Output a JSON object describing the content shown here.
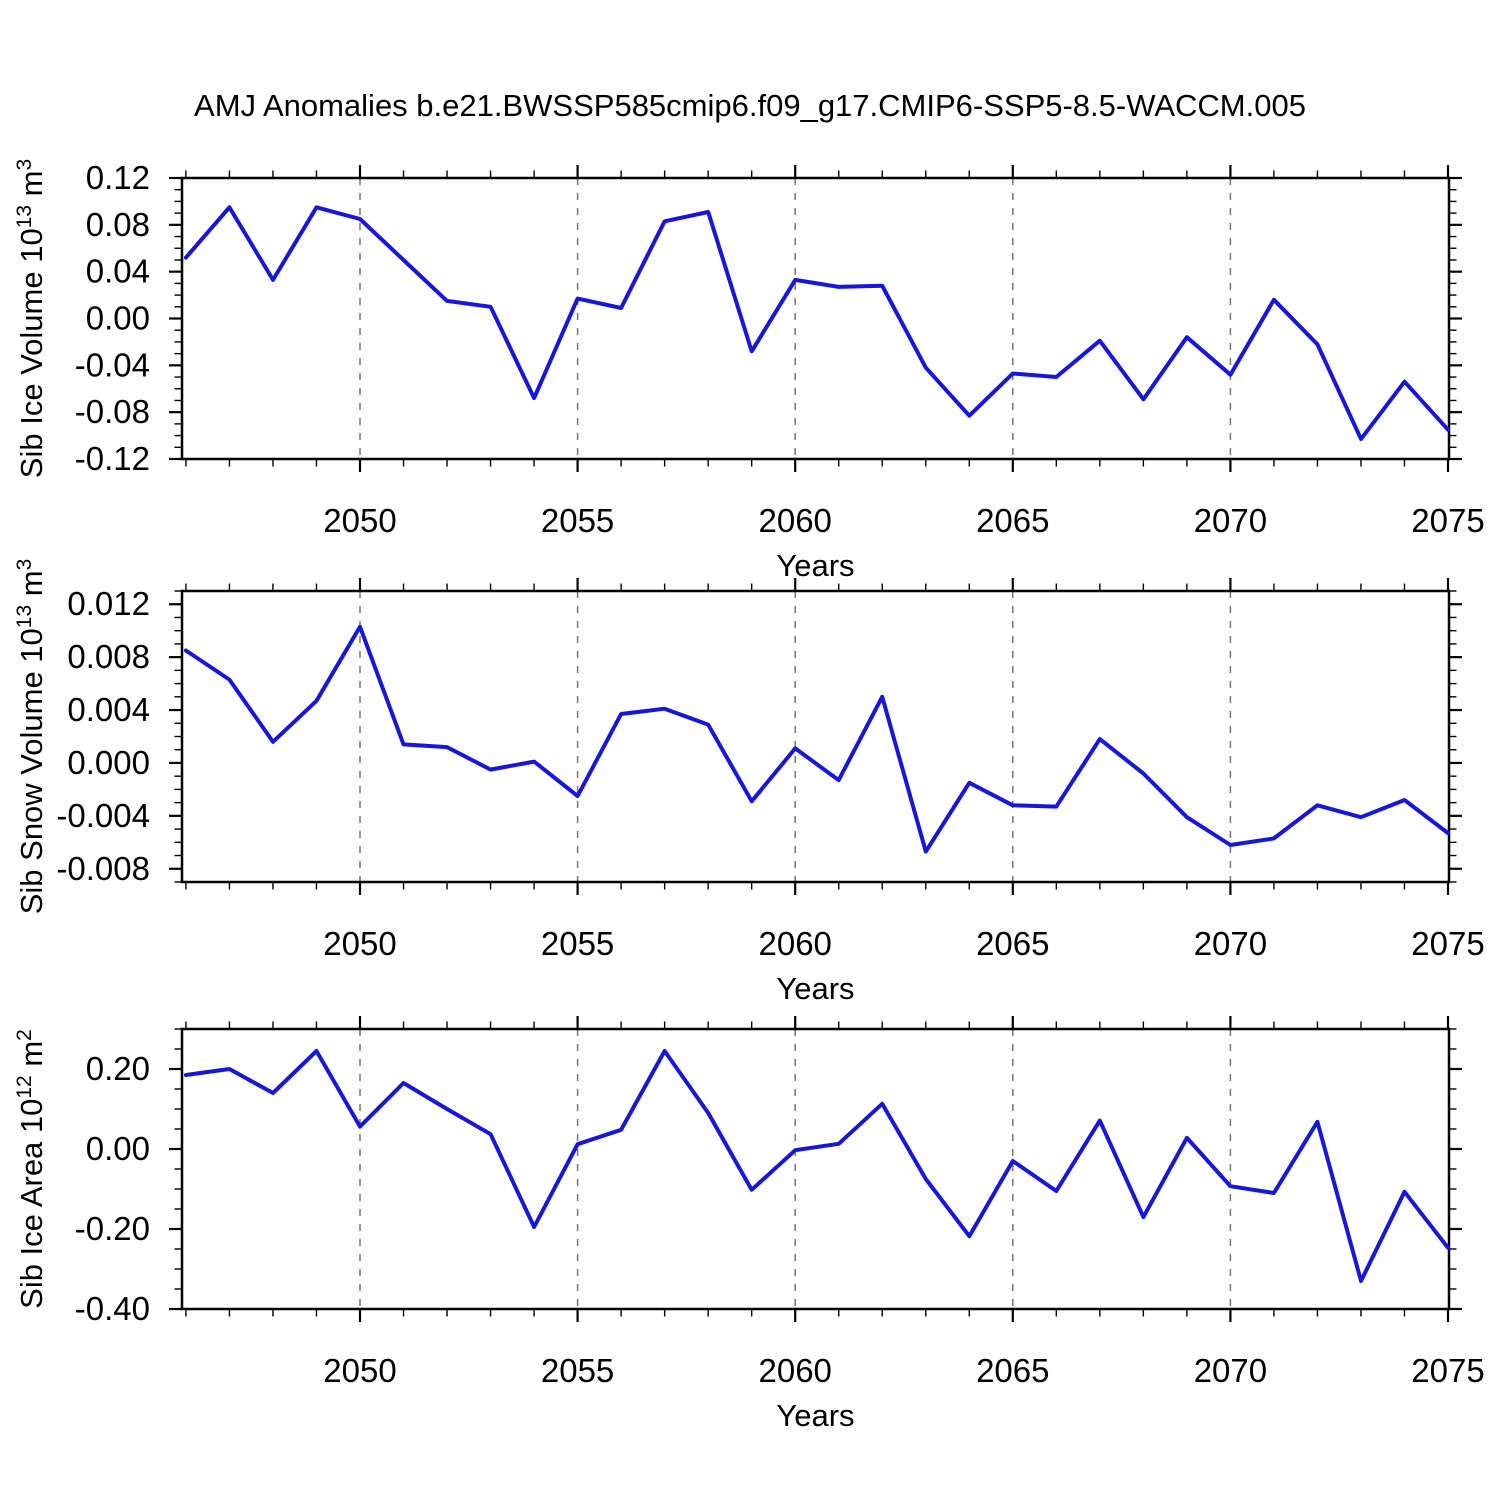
{
  "title": "AMJ Anomalies b.e21.BWSSP585cmip6.f09_g17.CMIP6-SSP5-8.5-WACCM.005",
  "colors": {
    "line": "#1616dd",
    "gridline": "#777777",
    "frame": "#000000",
    "background": "#ffffff"
  },
  "chart_data": {
    "type": "line",
    "xlabel": "Years",
    "x_years": [
      2046,
      2047,
      2048,
      2049,
      2050,
      2051,
      2052,
      2053,
      2054,
      2055,
      2056,
      2057,
      2058,
      2059,
      2060,
      2061,
      2062,
      2063,
      2064,
      2065,
      2066,
      2067,
      2068,
      2069,
      2070,
      2071,
      2072,
      2073,
      2074,
      2075
    ],
    "x_major_ticks": [
      2050,
      2055,
      2060,
      2065,
      2070,
      2075
    ],
    "x_major_tick_labels": [
      "2050",
      "2055",
      "2060",
      "2065",
      "2070",
      "2075"
    ],
    "x_gridlines": [
      2050,
      2055,
      2060,
      2065,
      2070
    ],
    "panels": [
      {
        "id": "sib-ice-volume",
        "ylabel_text": "Sib Ice Volume 10^13 m^3",
        "ylabel_parts": [
          {
            "t": "Sib Ice Volume 10"
          },
          {
            "t": "13",
            "sup": true
          },
          {
            "t": " m",
            "after_sup": true
          },
          {
            "t": "3",
            "sup": true
          }
        ],
        "frame_ylim": [
          -0.12,
          0.12
        ],
        "ytick_values": [
          0.12,
          0.08,
          0.04,
          0.0,
          -0.04,
          -0.08,
          -0.12
        ],
        "ytick_labels": [
          "0.12",
          "0.08",
          "0.04",
          "0.00",
          "-0.04",
          "-0.08",
          "-0.12"
        ],
        "y_minor_step": 0.01,
        "values": [
          0.052,
          0.095,
          0.033,
          0.095,
          0.085,
          0.05,
          0.015,
          0.01,
          -0.068,
          0.017,
          0.009,
          0.083,
          0.091,
          -0.028,
          0.033,
          0.027,
          0.028,
          -0.042,
          -0.083,
          -0.047,
          -0.05,
          -0.019,
          -0.069,
          -0.016,
          -0.048,
          0.016,
          -0.022,
          -0.103,
          -0.054,
          -0.095
        ]
      },
      {
        "id": "sib-snow-volume",
        "ylabel_text": "Sib Snow Volume 10^13 m^3",
        "ylabel_parts": [
          {
            "t": "Sib Snow Volume 10"
          },
          {
            "t": "13",
            "sup": true
          },
          {
            "t": " m",
            "after_sup": true
          },
          {
            "t": "3",
            "sup": true
          }
        ],
        "frame_ylim": [
          -0.009,
          0.013
        ],
        "ytick_values": [
          0.012,
          0.008,
          0.004,
          0.0,
          -0.004,
          -0.008
        ],
        "ytick_labels": [
          "0.012",
          "0.008",
          "0.004",
          "0.000",
          "-0.004",
          "-0.008"
        ],
        "y_minor_step": 0.001,
        "values": [
          0.0085,
          0.0063,
          0.0016,
          0.0047,
          0.0103,
          0.0014,
          0.0012,
          -0.0005,
          0.0001,
          -0.0025,
          0.0037,
          0.0041,
          0.0029,
          -0.0029,
          0.0011,
          -0.0013,
          0.005,
          -0.0067,
          -0.0015,
          -0.0032,
          -0.0033,
          0.0018,
          -0.0008,
          -0.0041,
          -0.0062,
          -0.0057,
          -0.0032,
          -0.0041,
          -0.0028,
          -0.0053
        ]
      },
      {
        "id": "sib-ice-area",
        "ylabel_text": "Sib Ice Area 10^12 m^2",
        "ylabel_parts": [
          {
            "t": "Sib Ice Area 10"
          },
          {
            "t": "12",
            "sup": true
          },
          {
            "t": " m",
            "after_sup": true
          },
          {
            "t": "2",
            "sup": true
          }
        ],
        "frame_ylim": [
          -0.4,
          0.3
        ],
        "ytick_values": [
          0.2,
          0.0,
          -0.2,
          -0.4
        ],
        "ytick_labels": [
          "0.20",
          "0.00",
          "-0.20",
          "-0.40"
        ],
        "y_minor_step": 0.05,
        "values": [
          0.185,
          0.2,
          0.14,
          0.245,
          0.056,
          0.165,
          0.1,
          0.037,
          -0.195,
          0.012,
          0.048,
          0.245,
          0.09,
          -0.102,
          -0.003,
          0.013,
          0.113,
          -0.075,
          -0.218,
          -0.03,
          -0.105,
          0.071,
          -0.17,
          0.028,
          -0.093,
          -0.11,
          0.068,
          -0.33,
          -0.107,
          -0.247
        ]
      }
    ]
  }
}
